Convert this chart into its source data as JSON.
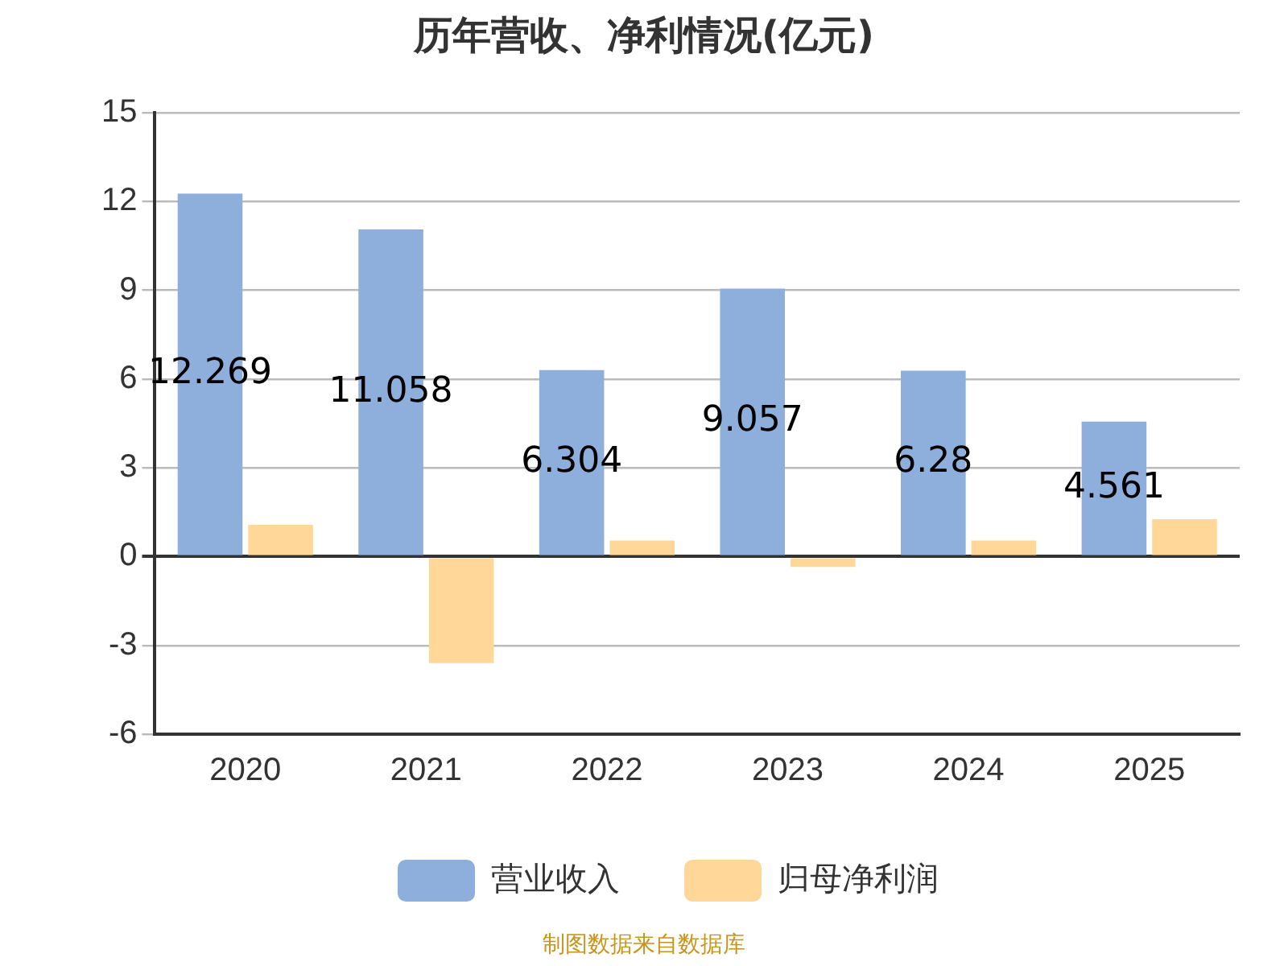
{
  "chart_data": {
    "type": "bar",
    "title": "历年营收、净利情况(亿元)",
    "categories": [
      "2020",
      "2021",
      "2022",
      "2023",
      "2024",
      "2025"
    ],
    "series": [
      {
        "name": "营业收入",
        "color": "#8eaedb",
        "values": [
          12.269,
          11.058,
          6.304,
          9.057,
          6.28,
          4.561
        ],
        "value_labels": [
          "12.269",
          "11.058",
          "6.304",
          "9.057",
          "6.28",
          "4.561"
        ]
      },
      {
        "name": "归母净利润",
        "color": "#ffd899",
        "values": [
          1.07,
          -3.6,
          0.54,
          -0.35,
          0.54,
          1.26
        ]
      }
    ],
    "ylim": [
      -6,
      15
    ],
    "yticks": [
      -6,
      -3,
      0,
      3,
      6,
      9,
      12,
      15
    ],
    "grid": "y",
    "legend": "bottom",
    "annotations": [
      "制图数据来自数据库"
    ]
  }
}
